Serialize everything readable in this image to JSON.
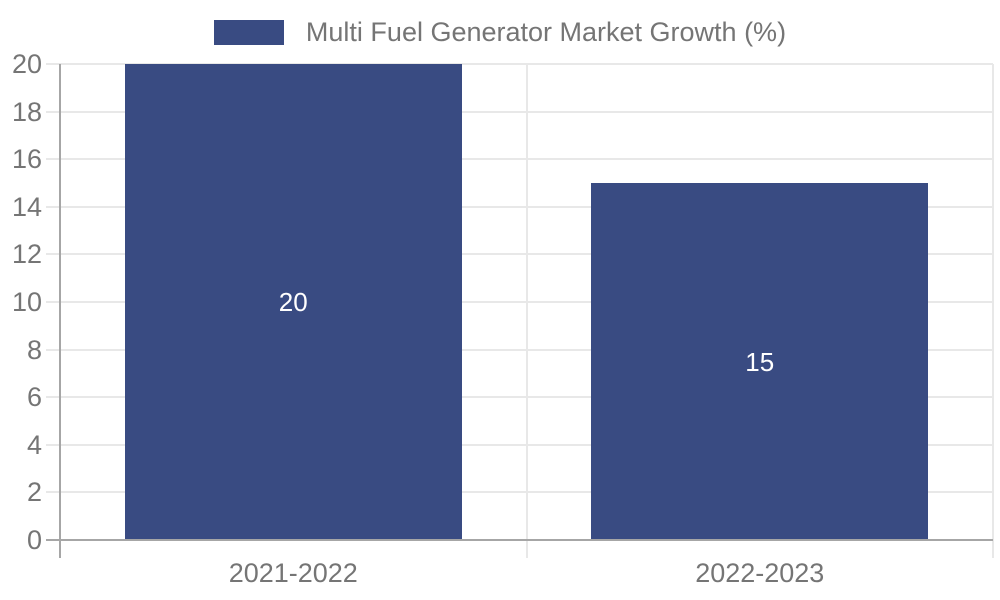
{
  "chart_data": {
    "type": "bar",
    "title": "Multi Fuel Generator Market Growth (%)",
    "legend": [
      "Multi Fuel Generator Market Growth (%)"
    ],
    "legend_position": "top",
    "categories": [
      "2021-2022",
      "2022-2023"
    ],
    "values": [
      20,
      15
    ],
    "data_labels": [
      "20",
      "15"
    ],
    "xlabel": "",
    "ylabel": "",
    "ylim": [
      0,
      20
    ],
    "yticks": [
      0,
      2,
      4,
      6,
      8,
      10,
      12,
      14,
      16,
      18,
      20
    ],
    "grid": true,
    "colors": {
      "bar": "#394b82",
      "axis_line": "#a6a6a6",
      "grid_line": "#e8e8e8",
      "tick_text": "#757575",
      "legend_text": "#757575",
      "data_label_text": "#ffffff",
      "background": "#ffffff"
    }
  }
}
